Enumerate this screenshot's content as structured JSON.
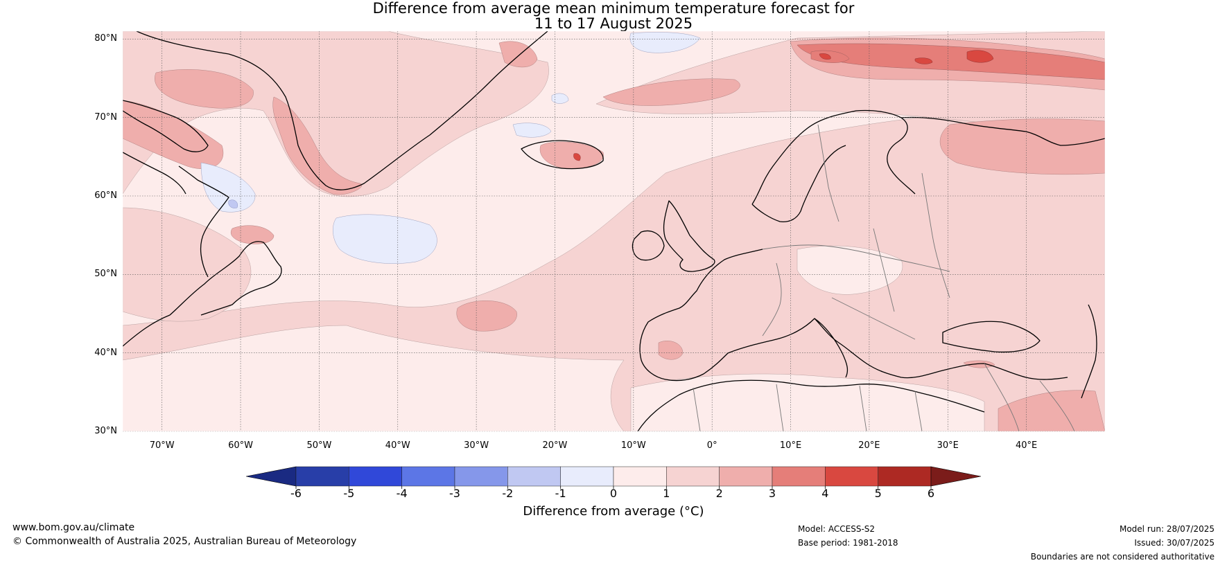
{
  "title": {
    "line1": "Difference from average mean minimum temperature forecast for",
    "line2": "11 to 17 August 2025"
  },
  "map": {
    "projection": "equirectangular",
    "lon_range": [
      -75,
      50
    ],
    "lat_range": [
      30,
      81
    ],
    "lat_labels": [
      "80°N",
      "70°N",
      "60°N",
      "50°N",
      "40°N",
      "30°N"
    ],
    "lat_values": [
      80,
      70,
      60,
      50,
      40,
      30
    ],
    "lon_labels": [
      "70°W",
      "60°W",
      "50°W",
      "40°W",
      "30°W",
      "20°W",
      "10°W",
      "0°",
      "10°E",
      "20°E",
      "30°E",
      "40°E"
    ],
    "lon_values": [
      -70,
      -60,
      -50,
      -40,
      -30,
      -20,
      -10,
      0,
      10,
      20,
      30,
      40
    ],
    "background_color": "#fdeceb"
  },
  "colorbar": {
    "ticks": [
      "-6",
      "-5",
      "-4",
      "-3",
      "-2",
      "-1",
      "0",
      "1",
      "2",
      "3",
      "4",
      "5",
      "6"
    ],
    "colors": [
      "#283ea8",
      "#3048d9",
      "#5c76e6",
      "#8597ea",
      "#c0c8f2",
      "#e8ecfc",
      "#fdeceb",
      "#f6d3d2",
      "#efaeac",
      "#e57e79",
      "#d94840",
      "#ad2923"
    ],
    "under_color": "#1a2a82",
    "over_color": "#7b1c1a",
    "label": "Difference from average (°C)"
  },
  "footer": {
    "website": "www.bom.gov.au/climate",
    "copyright": "© Commonwealth of Australia 2025, Australian Bureau of Meteorology",
    "model": "Model: ACCESS-S2",
    "base_period": "Base period: 1981-2018",
    "model_run": "Model run: 28/07/2025",
    "issued": "Issued: 30/07/2025",
    "disclaimer": "Boundaries are not considered authoritative"
  }
}
